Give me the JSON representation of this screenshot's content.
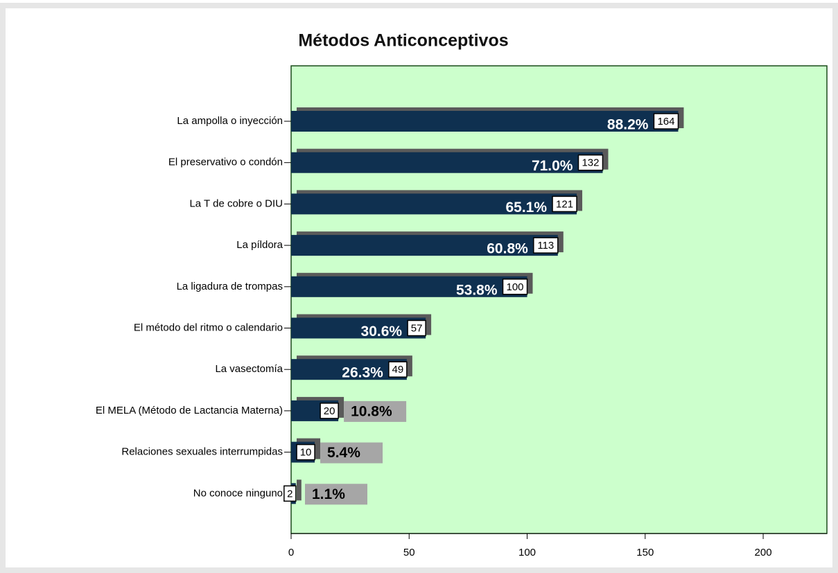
{
  "chart_data": {
    "type": "bar",
    "orientation": "horizontal",
    "title": "Métodos Anticonceptivos",
    "categories": [
      "La ampolla o inyección",
      "El preservativo o condón",
      "La T de cobre o DIU",
      "La píldora",
      "La ligadura de trompas",
      "El método del ritmo o calendario",
      "La vasectomía",
      "El MELA (Método de Lactancia Materna)",
      "Relaciones sexuales interrumpidas",
      "No conoce ninguno"
    ],
    "values": [
      164,
      132,
      121,
      113,
      100,
      57,
      49,
      20,
      10,
      2
    ],
    "percent_labels": [
      "88.2%",
      "71.0%",
      "65.1%",
      "60.8%",
      "53.8%",
      "30.6%",
      "26.3%",
      "10.8%",
      "5.4%",
      "1.1%"
    ],
    "color": "#0f3050",
    "xlim": [
      0,
      227
    ],
    "xticks": [
      0,
      50,
      100,
      150,
      200
    ]
  }
}
